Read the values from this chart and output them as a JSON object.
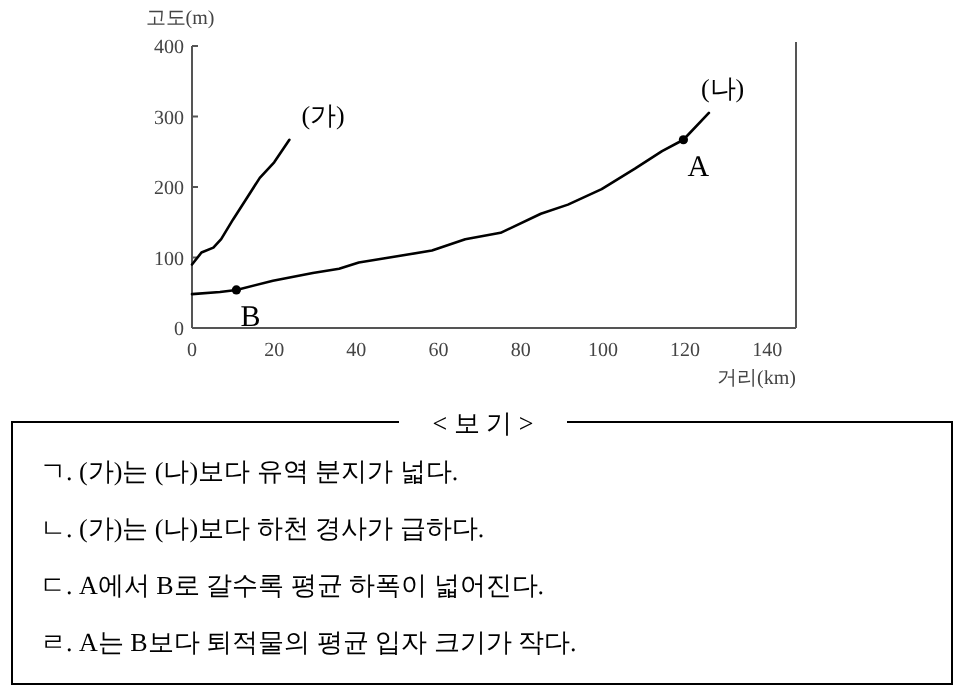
{
  "chart_data": {
    "type": "line",
    "xlabel": "거리(km)",
    "ylabel": "고도(m)",
    "xlim": [
      0,
      147
    ],
    "ylim": [
      0,
      400
    ],
    "xticks": [
      0,
      20,
      40,
      60,
      80,
      100,
      120,
      140
    ],
    "yticks": [
      0,
      100,
      200,
      300,
      400
    ],
    "grid": false,
    "series": [
      {
        "color": "#000000",
        "x": [
          0,
          2.3,
          5.2,
          7.1,
          10,
          13.2,
          16.5,
          20,
          23.7
        ],
        "values": [
          90,
          107,
          114,
          126,
          154,
          183,
          213,
          235,
          267
        ]
      },
      {
        "color": "#000000",
        "x": [
          0,
          6.8,
          10.8,
          19.7,
          29.4,
          35.8,
          40.6,
          50.3,
          58.4,
          66.5,
          75.1,
          84.9,
          91.5,
          99.7,
          107.8,
          114.4,
          119.6,
          125.8
        ],
        "values": [
          48,
          51,
          54,
          67,
          78,
          84,
          93,
          102,
          110,
          126,
          135,
          162,
          175,
          197,
          226,
          251,
          267,
          305
        ]
      },
      {
        "type": "scatter",
        "color": "#000000",
        "x": [
          10.8,
          119.6
        ],
        "values": [
          54,
          267
        ]
      }
    ],
    "annotations": [
      {
        "text": "(가)",
        "x": 23.7,
        "y": 267
      },
      {
        "text": "(나)",
        "x": 125.8,
        "y": 305
      },
      {
        "text": "A",
        "x": 119.6,
        "y": 267
      },
      {
        "text": "B",
        "x": 10.8,
        "y": 54
      },
      "< 보 기 >",
      "ㄱ. (가)는 (나)보다 유역 분지가 넓다.",
      "ㄴ. (가)는 (나)보다 하천 경사가 급하다.",
      "ㄷ. A에서 B로 갈수록 평균 하폭이 넓어진다.",
      "ㄹ. A는 B보다 퇴적물의 평균 입자 크기가 작다."
    ]
  }
}
